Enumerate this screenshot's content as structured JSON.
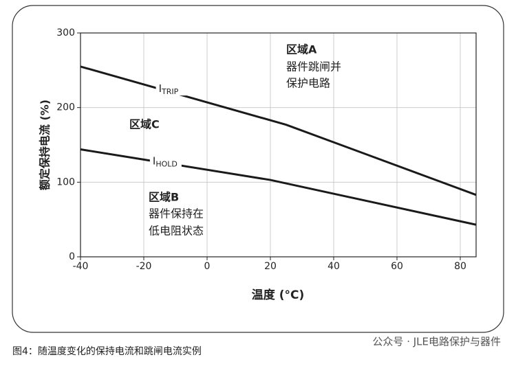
{
  "chart_data": {
    "type": "line",
    "y_label": "额定保持电流 (%)",
    "x_label": "温度 (°C)",
    "xlim": [
      -40,
      85
    ],
    "xticks": [
      -40,
      -20,
      0,
      20,
      40,
      60,
      80
    ],
    "ylim": [
      0,
      300
    ],
    "yticks": [
      0,
      100,
      200,
      300
    ],
    "grid": true,
    "series": [
      {
        "name": "ITRIP",
        "color": "#1a1a1a",
        "x": [
          -40,
          25,
          85
        ],
        "values": [
          255,
          177,
          83
        ]
      },
      {
        "name": "IHOLD",
        "color": "#1a1a1a",
        "x": [
          -40,
          20,
          85
        ],
        "values": [
          144,
          103,
          43
        ]
      }
    ],
    "annotations": [
      "区域A",
      "器件跳闸并",
      "保护电路",
      "区域C",
      "区域B",
      "器件保持在",
      "低电阻状态"
    ]
  },
  "caption": "图4：随温度变化的保持电流和跳闸电流实例",
  "watermark": "公众号 · JLE电路保护与器件"
}
